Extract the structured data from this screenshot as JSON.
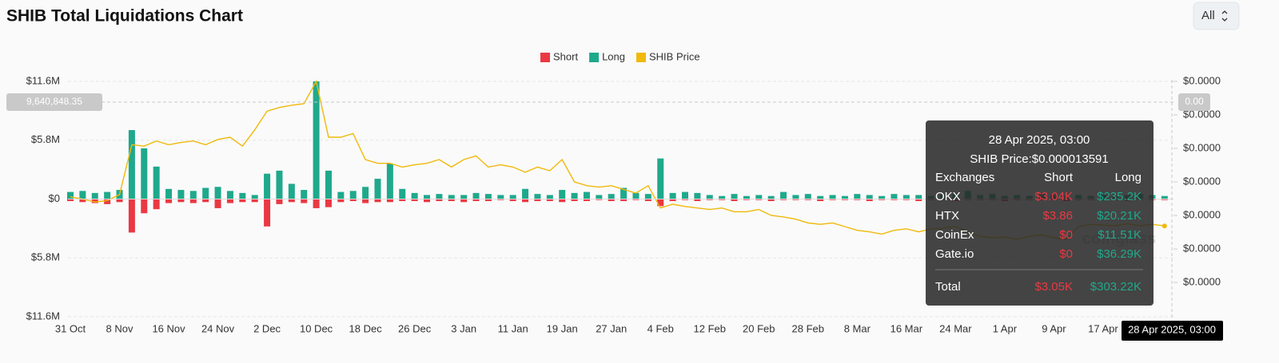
{
  "chart_data": {
    "type": "bar",
    "title": "SHIB Total Liquidations Chart",
    "range_selector": "All",
    "legend_position": "top",
    "grid": true,
    "categories": [
      "31 Oct",
      null,
      null,
      null,
      "8 Nov",
      null,
      null,
      null,
      "16 Nov",
      null,
      null,
      null,
      "24 Nov",
      null,
      null,
      null,
      "2 Dec",
      null,
      null,
      null,
      "10 Dec",
      null,
      null,
      null,
      "18 Dec",
      null,
      null,
      null,
      "26 Dec",
      null,
      null,
      null,
      "3 Jan",
      null,
      null,
      null,
      "11 Jan",
      null,
      null,
      null,
      "19 Jan",
      null,
      null,
      null,
      "27 Jan",
      null,
      null,
      null,
      "4 Feb",
      null,
      null,
      null,
      "12 Feb",
      null,
      null,
      null,
      "20 Feb",
      null,
      null,
      null,
      "28 Feb",
      null,
      null,
      null,
      "8 Mar",
      null,
      null,
      null,
      "16 Mar",
      null,
      null,
      null,
      "24 Mar",
      null,
      null,
      null,
      "1 Apr",
      null,
      null,
      null,
      "9 Apr",
      null,
      null,
      null,
      "17 Apr",
      null,
      null,
      null,
      null,
      null
    ],
    "ylim": [
      -11600000,
      11600000
    ],
    "yticks": [
      {
        "value": 11600000,
        "label": "$11.6M"
      },
      {
        "value": 5800000,
        "label": "$5.8M"
      },
      {
        "value": 0,
        "label": "$0"
      },
      {
        "value": -5800000,
        "label": "$5.8M"
      },
      {
        "value": -11600000,
        "label": "$11.6M"
      }
    ],
    "y2lim": [
      1.4e-06,
      3.3e-05
    ],
    "y2ticks": [
      {
        "value": 3.3e-05,
        "label": "$0.0000"
      },
      {
        "value": 2.85e-05,
        "label": "$0.0000"
      },
      {
        "value": 2.4e-05,
        "label": "$0.0000"
      },
      {
        "value": 1.95e-05,
        "label": "$0.0000"
      },
      {
        "value": 1.5e-05,
        "label": "$0.0000"
      },
      {
        "value": 1.05e-05,
        "label": "$0.0000"
      },
      {
        "value": 6e-06,
        "label": "$0.0000"
      }
    ],
    "series": [
      {
        "name": "Short",
        "color": "#ea3943",
        "values": [
          -200000,
          -300000,
          -400000,
          -500000,
          -300000,
          -3300000,
          -1400000,
          -1000000,
          -400000,
          -300000,
          -400000,
          -300000,
          -900000,
          -400000,
          -300000,
          -300000,
          -2700000,
          -500000,
          -300000,
          -400000,
          -900000,
          -800000,
          -300000,
          -200000,
          -400000,
          -300000,
          -300000,
          -200000,
          -200000,
          -300000,
          -200000,
          -200000,
          -300000,
          -200000,
          -200000,
          -100000,
          -200000,
          -300000,
          -200000,
          -200000,
          -300000,
          -200000,
          -200000,
          -100000,
          -200000,
          -200000,
          -100000,
          -200000,
          -700000,
          -200000,
          -100000,
          -200000,
          -100000,
          -100000,
          -200000,
          -100000,
          -100000,
          -200000,
          -100000,
          -100000,
          -100000,
          -200000,
          -100000,
          -100000,
          -100000,
          -200000,
          -100000,
          -100000,
          -100000,
          -200000,
          -100000,
          -100000,
          -200000,
          -100000,
          -100000,
          -100000,
          -200000,
          -100000,
          -100000,
          -100000,
          -100000,
          -200000,
          -100000,
          -100000,
          -100000,
          -100000,
          -200000,
          -100000,
          -100000,
          -100000
        ]
      },
      {
        "name": "Long",
        "color": "#1fa98c",
        "values": [
          700000,
          800000,
          600000,
          700000,
          900000,
          6800000,
          5000000,
          3200000,
          1000000,
          900000,
          800000,
          1100000,
          1200000,
          800000,
          600000,
          400000,
          2500000,
          2800000,
          1500000,
          900000,
          11600000,
          2800000,
          700000,
          800000,
          1200000,
          2000000,
          3500000,
          1000000,
          600000,
          400000,
          500000,
          400000,
          400000,
          600000,
          500000,
          400000,
          400000,
          1000000,
          500000,
          400000,
          900000,
          600000,
          700000,
          400000,
          500000,
          1100000,
          600000,
          500000,
          4000000,
          600000,
          700000,
          600000,
          400000,
          300000,
          500000,
          300000,
          400000,
          300000,
          700000,
          400000,
          500000,
          300000,
          400000,
          300000,
          500000,
          400000,
          300000,
          500000,
          400000,
          400000,
          300000,
          400000,
          500000,
          800000,
          400000,
          500000,
          300000,
          400000,
          300000,
          500000,
          400000,
          300000,
          400000,
          300000,
          400000,
          300000,
          400000,
          500000,
          400000,
          300000
        ]
      },
      {
        "name": "SHIB Price",
        "color": "#f0b90b",
        "type": "line",
        "axis": "y2",
        "values": [
          1.75e-05,
          1.72e-05,
          1.68e-05,
          1.7e-05,
          1.78e-05,
          2.45e-05,
          2.43e-05,
          2.5e-05,
          2.45e-05,
          2.48e-05,
          2.5e-05,
          2.45e-05,
          2.52e-05,
          2.55e-05,
          2.43e-05,
          2.65e-05,
          2.9e-05,
          2.95e-05,
          2.98e-05,
          3e-05,
          3.3e-05,
          2.55e-05,
          2.55e-05,
          2.6e-05,
          2.25e-05,
          2.2e-05,
          2.2e-05,
          2.15e-05,
          2.18e-05,
          2.2e-05,
          2.25e-05,
          2.15e-05,
          2.25e-05,
          2.3e-05,
          2.15e-05,
          2.18e-05,
          2.15e-05,
          2.08e-05,
          2.15e-05,
          2.1e-05,
          2.25e-05,
          1.95e-05,
          1.9e-05,
          1.88e-05,
          1.9e-05,
          1.85e-05,
          1.8e-05,
          1.9e-05,
          1.6e-05,
          1.65e-05,
          1.62e-05,
          1.6e-05,
          1.58e-05,
          1.6e-05,
          1.55e-05,
          1.55e-05,
          1.58e-05,
          1.5e-05,
          1.48e-05,
          1.45e-05,
          1.4e-05,
          1.38e-05,
          1.4e-05,
          1.35e-05,
          1.3e-05,
          1.28e-05,
          1.25e-05,
          1.3e-05,
          1.32e-05,
          1.28e-05,
          1.32e-05,
          1.33e-05,
          1.35e-05,
          1.28e-05,
          1.22e-05,
          1.2e-05,
          1.21e-05,
          1.18e-05,
          1.22e-05,
          1.24e-05,
          1.2e-05,
          1.18e-05,
          1.35e-05,
          1.38e-05,
          1.37e-05,
          1.36e-05,
          1.39e-05,
          1.36e-05,
          1.38e-05,
          1.3591e-05
        ]
      }
    ],
    "crosshair": {
      "y_label": "9,640,848.35",
      "y2_label": "0.00",
      "x_label": "28 Apr 2025, 03:00"
    },
    "watermark": "coinglass",
    "tooltip": {
      "date": "28 Apr 2025, 03:00",
      "price": "SHIB Price:$0.000013591",
      "header": [
        "Exchanges",
        "Short",
        "Long"
      ],
      "rows": [
        [
          "OKX",
          "$3.04K",
          "$235.2K"
        ],
        [
          "HTX",
          "$3.86",
          "$20.21K"
        ],
        [
          "CoinEx",
          "$0",
          "$11.51K"
        ],
        [
          "Gate.io",
          "$0",
          "$36.29K"
        ]
      ],
      "total": [
        "Total",
        "$3.05K",
        "$303.22K"
      ]
    }
  }
}
